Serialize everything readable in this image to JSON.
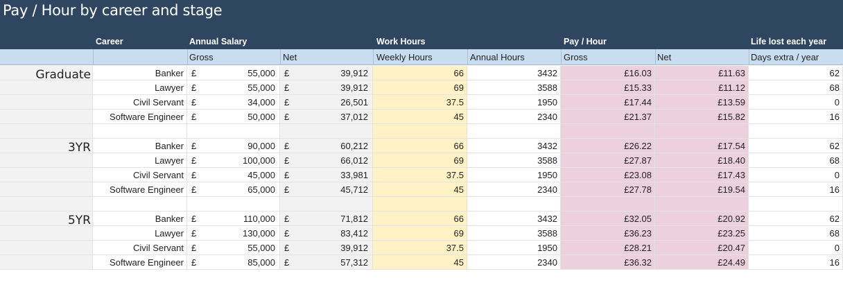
{
  "title": "Pay / Hour by career and stage",
  "headers": {
    "career": "Career",
    "annual_salary": "Annual Salary",
    "work_hours": "Work Hours",
    "pay_hour": "Pay / Hour",
    "life_lost": "Life lost each year",
    "gross": "Gross",
    "net": "Net",
    "weekly_hours": "Weekly Hours",
    "annual_hours": "Annual Hours",
    "pay_gross": "Gross",
    "pay_net": "Net",
    "days_extra": "Days extra / year"
  },
  "currency": "£",
  "groups": [
    {
      "stage": "Graduate",
      "rows": [
        {
          "career": "Banker",
          "gross": "55,000",
          "net": "39,912",
          "weekly": "66",
          "annual": "3432",
          "pay_gross": "£16.03",
          "pay_net": "£11.63",
          "days": "62"
        },
        {
          "career": "Lawyer",
          "gross": "55,000",
          "net": "39,912",
          "weekly": "69",
          "annual": "3588",
          "pay_gross": "£15.33",
          "pay_net": "£11.12",
          "days": "68"
        },
        {
          "career": "Civil Servant",
          "gross": "34,000",
          "net": "26,501",
          "weekly": "37.5",
          "annual": "1950",
          "pay_gross": "£17.44",
          "pay_net": "£13.59",
          "days": "0"
        },
        {
          "career": "Software Engineer",
          "gross": "50,000",
          "net": "37,012",
          "weekly": "45",
          "annual": "2340",
          "pay_gross": "£21.37",
          "pay_net": "£15.82",
          "days": "16"
        }
      ]
    },
    {
      "stage": "3YR",
      "rows": [
        {
          "career": "Banker",
          "gross": "90,000",
          "net": "60,212",
          "weekly": "66",
          "annual": "3432",
          "pay_gross": "£26.22",
          "pay_net": "£17.54",
          "days": "62"
        },
        {
          "career": "Lawyer",
          "gross": "100,000",
          "net": "66,012",
          "weekly": "69",
          "annual": "3588",
          "pay_gross": "£27.87",
          "pay_net": "£18.40",
          "days": "68"
        },
        {
          "career": "Civil Servant",
          "gross": "45,000",
          "net": "33,981",
          "weekly": "37.5",
          "annual": "1950",
          "pay_gross": "£23.08",
          "pay_net": "£17.43",
          "days": "0"
        },
        {
          "career": "Software Engineer",
          "gross": "65,000",
          "net": "45,712",
          "weekly": "45",
          "annual": "2340",
          "pay_gross": "£27.78",
          "pay_net": "£19.54",
          "days": "16"
        }
      ]
    },
    {
      "stage": "5YR",
      "rows": [
        {
          "career": "Banker",
          "gross": "110,000",
          "net": "71,812",
          "weekly": "66",
          "annual": "3432",
          "pay_gross": "£32.05",
          "pay_net": "£20.92",
          "days": "62"
        },
        {
          "career": "Lawyer",
          "gross": "130,000",
          "net": "83,412",
          "weekly": "69",
          "annual": "3588",
          "pay_gross": "£36.23",
          "pay_net": "£23.25",
          "days": "68"
        },
        {
          "career": "Civil Servant",
          "gross": "55,000",
          "net": "39,912",
          "weekly": "37.5",
          "annual": "1950",
          "pay_gross": "£28.21",
          "pay_net": "£20.47",
          "days": "0"
        },
        {
          "career": "Software Engineer",
          "gross": "85,000",
          "net": "57,312",
          "weekly": "45",
          "annual": "2340",
          "pay_gross": "£36.32",
          "pay_net": "£24.49",
          "days": "16"
        }
      ]
    }
  ]
}
